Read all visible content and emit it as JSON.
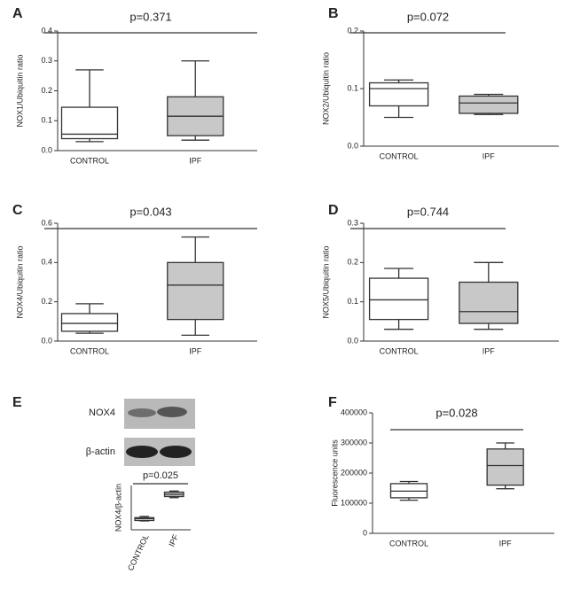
{
  "chart_data": [
    {
      "type": "box",
      "label": "A",
      "ylabel": "NOX1/Ubiquitin ratio",
      "annotation": "p=0.371",
      "categories": [
        "CONTROL",
        "IPF"
      ],
      "colors": [
        "#ffffff",
        "#c8c8c8"
      ],
      "boxes": [
        {
          "min": 0.03,
          "q1": 0.04,
          "median": 0.055,
          "q3": 0.145,
          "max": 0.27
        },
        {
          "min": 0.035,
          "q1": 0.05,
          "median": 0.115,
          "q3": 0.18,
          "max": 0.3
        }
      ],
      "ylim": [
        0,
        0.4
      ],
      "yticks": [
        {
          "value": 0,
          "label": "0.0"
        },
        0.1,
        0.2,
        0.3,
        0.4
      ]
    },
    {
      "type": "box",
      "label": "B",
      "ylabel": "NOX2/Ubiquitin ratio",
      "annotation": "p=0.072",
      "categories": [
        "CONTROL",
        "IPF"
      ],
      "colors": [
        "#ffffff",
        "#c8c8c8"
      ],
      "boxes": [
        {
          "min": 0.05,
          "q1": 0.07,
          "median": 0.1,
          "q3": 0.11,
          "max": 0.115
        },
        {
          "min": 0.055,
          "q1": 0.057,
          "median": 0.075,
          "q3": 0.087,
          "max": 0.09
        }
      ],
      "ylim": [
        0,
        0.2
      ],
      "yticks": [
        {
          "value": 0,
          "label": "0.0"
        },
        0.1,
        0.2
      ]
    },
    {
      "type": "box",
      "label": "C",
      "ylabel": "NOX4/Ubiquitin ratio",
      "annotation": "p=0.043",
      "categories": [
        "CONTROL",
        "IPF"
      ],
      "colors": [
        "#ffffff",
        "#c8c8c8"
      ],
      "boxes": [
        {
          "min": 0.04,
          "q1": 0.05,
          "median": 0.09,
          "q3": 0.14,
          "max": 0.19
        },
        {
          "min": 0.03,
          "q1": 0.11,
          "median": 0.285,
          "q3": 0.4,
          "max": 0.53
        }
      ],
      "ylim": [
        0,
        0.6
      ],
      "yticks": [
        {
          "value": 0,
          "label": "0.0"
        },
        0.2,
        0.4,
        0.6
      ]
    },
    {
      "type": "box",
      "label": "D",
      "ylabel": "NOX5/Ubiquitin ratio",
      "annotation": "p=0.744",
      "categories": [
        "CONTROL",
        "IPF"
      ],
      "colors": [
        "#ffffff",
        "#c8c8c8"
      ],
      "boxes": [
        {
          "min": 0.03,
          "q1": 0.055,
          "median": 0.105,
          "q3": 0.16,
          "max": 0.185
        },
        {
          "min": 0.03,
          "q1": 0.045,
          "median": 0.075,
          "q3": 0.15,
          "max": 0.2
        }
      ],
      "ylim": [
        0,
        0.3
      ],
      "yticks": [
        {
          "value": 0,
          "label": "0.0"
        },
        0.1,
        0.2,
        0.3
      ]
    },
    {
      "type": "box",
      "label": "E",
      "ylabel": "NOX4/β-actin",
      "annotation": "p=0.025",
      "blot_labels": [
        "NOX4",
        "β-actin"
      ],
      "categories": [
        "CONTROL",
        "IPF"
      ],
      "colors": [
        "#ffffff",
        "#c8c8c8"
      ],
      "boxes": [
        {
          "min": 0.4,
          "q1": 0.42,
          "median": 0.5,
          "q3": 0.55,
          "max": 0.6
        },
        {
          "min": 1.45,
          "q1": 1.5,
          "median": 1.6,
          "q3": 1.7,
          "max": 1.75
        }
      ],
      "ylim": [
        0,
        2
      ]
    },
    {
      "type": "box",
      "label": "F",
      "ylabel": "Fluorescence units",
      "annotation": "p=0.028",
      "categories": [
        "CONTROL",
        "IPF"
      ],
      "colors": [
        "#ffffff",
        "#c8c8c8"
      ],
      "boxes": [
        {
          "min": 110000,
          "q1": 118000,
          "median": 140000,
          "q3": 165000,
          "max": 172000
        },
        {
          "min": 148000,
          "q1": 160000,
          "median": 225000,
          "q3": 280000,
          "max": 300000
        }
      ],
      "ylim": [
        0,
        400000
      ],
      "yticks": [
        0,
        100000,
        200000,
        300000,
        400000
      ]
    }
  ]
}
